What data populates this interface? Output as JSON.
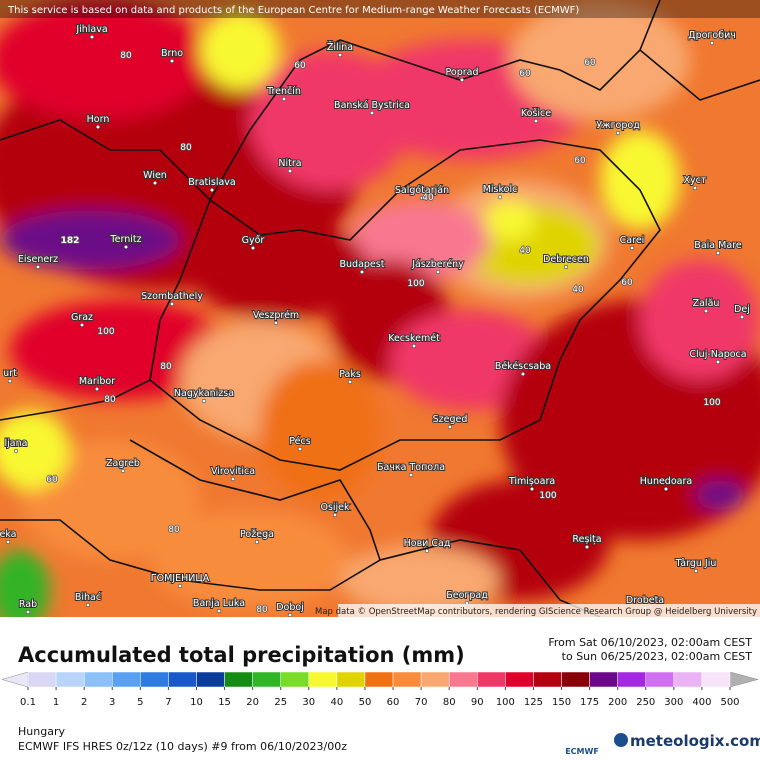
{
  "notice": "This service is based on data and products of the European Centre for Medium-range Weather Forecasts (ECMWF)",
  "map": {
    "cities": [
      "Jihlava",
      "Brno",
      "Žilina",
      "Poprad",
      "Дрогобич",
      "Trenčín",
      "Banská Bystrica",
      "Košice",
      "Ужгород",
      "Horn",
      "Nitra",
      "Wien",
      "Bratislava",
      "Salgótarján",
      "Miskolc",
      "Хуст",
      "Ternitz",
      "Győr",
      "Budapest",
      "Jászberény",
      "Debrecen",
      "Carei",
      "Baia Mare",
      "Eisenerz",
      "Szombathely",
      "Graz",
      "Veszprém",
      "Zalău",
      "Kecskemét",
      "Cluj-Napoca",
      "Maribor",
      "Paks",
      "Békéscsaba",
      "Nagykanizsa",
      "Szeged",
      "Pécs",
      "Zagreb",
      "Virovitica",
      "Бачка Топола",
      "Timișoara",
      "Hunedoara",
      "Osijek",
      "Požega",
      "Reșița",
      "Нови Сад",
      "Târgu Jiu",
      "ГОМЈЕНИЦА",
      "Banja Luka",
      "Bihać",
      "Doboj",
      "Београд",
      "Drobeta",
      "Dej",
      "ljana",
      "Rab",
      "urt",
      "eka"
    ],
    "contour_labels": [
      182,
      80,
      60,
      60,
      80,
      60,
      40,
      40,
      40,
      60,
      100,
      100,
      80,
      80,
      80,
      60,
      80,
      100,
      100,
      60
    ],
    "credit": "Map data © OpenStreetMap contributors, rendering GIScience Research Group @ Heidelberg University"
  },
  "legend": {
    "title": "Accumulated total precipitation (mm)",
    "from": "From Sat 06/10/2023, 02:00am CEST",
    "to": "to Sun 06/25/2023, 02:00am CEST",
    "ticks": [
      0.1,
      1,
      2,
      3,
      5,
      7,
      10,
      15,
      20,
      25,
      30,
      40,
      50,
      60,
      70,
      80,
      90,
      100,
      125,
      150,
      175,
      200,
      250,
      300,
      400,
      500
    ],
    "colors": [
      "#d8d8f4",
      "#b8d4f8",
      "#8cc0f8",
      "#5aa0f0",
      "#2e7ce0",
      "#1858c8",
      "#0a3c9a",
      "#148c14",
      "#30b428",
      "#78dc28",
      "#f8f830",
      "#e0d400",
      "#f07014",
      "#f88c3c",
      "#f8a870",
      "#f87890",
      "#f03868",
      "#e0002c",
      "#b40010",
      "#880008",
      "#6c0888",
      "#a428e0",
      "#d070f0",
      "#eab4f4",
      "#f8e4f8"
    ],
    "under_color": "#e8e8f8",
    "over_color": "#b0b0b0"
  },
  "footer": {
    "region": "Hungary",
    "model": "ECMWF IFS HRES 0z/12z (10 days) #9 from  06/10/2023/00z",
    "ecmwf": "ECMWF",
    "brand": "meteologix.com"
  }
}
